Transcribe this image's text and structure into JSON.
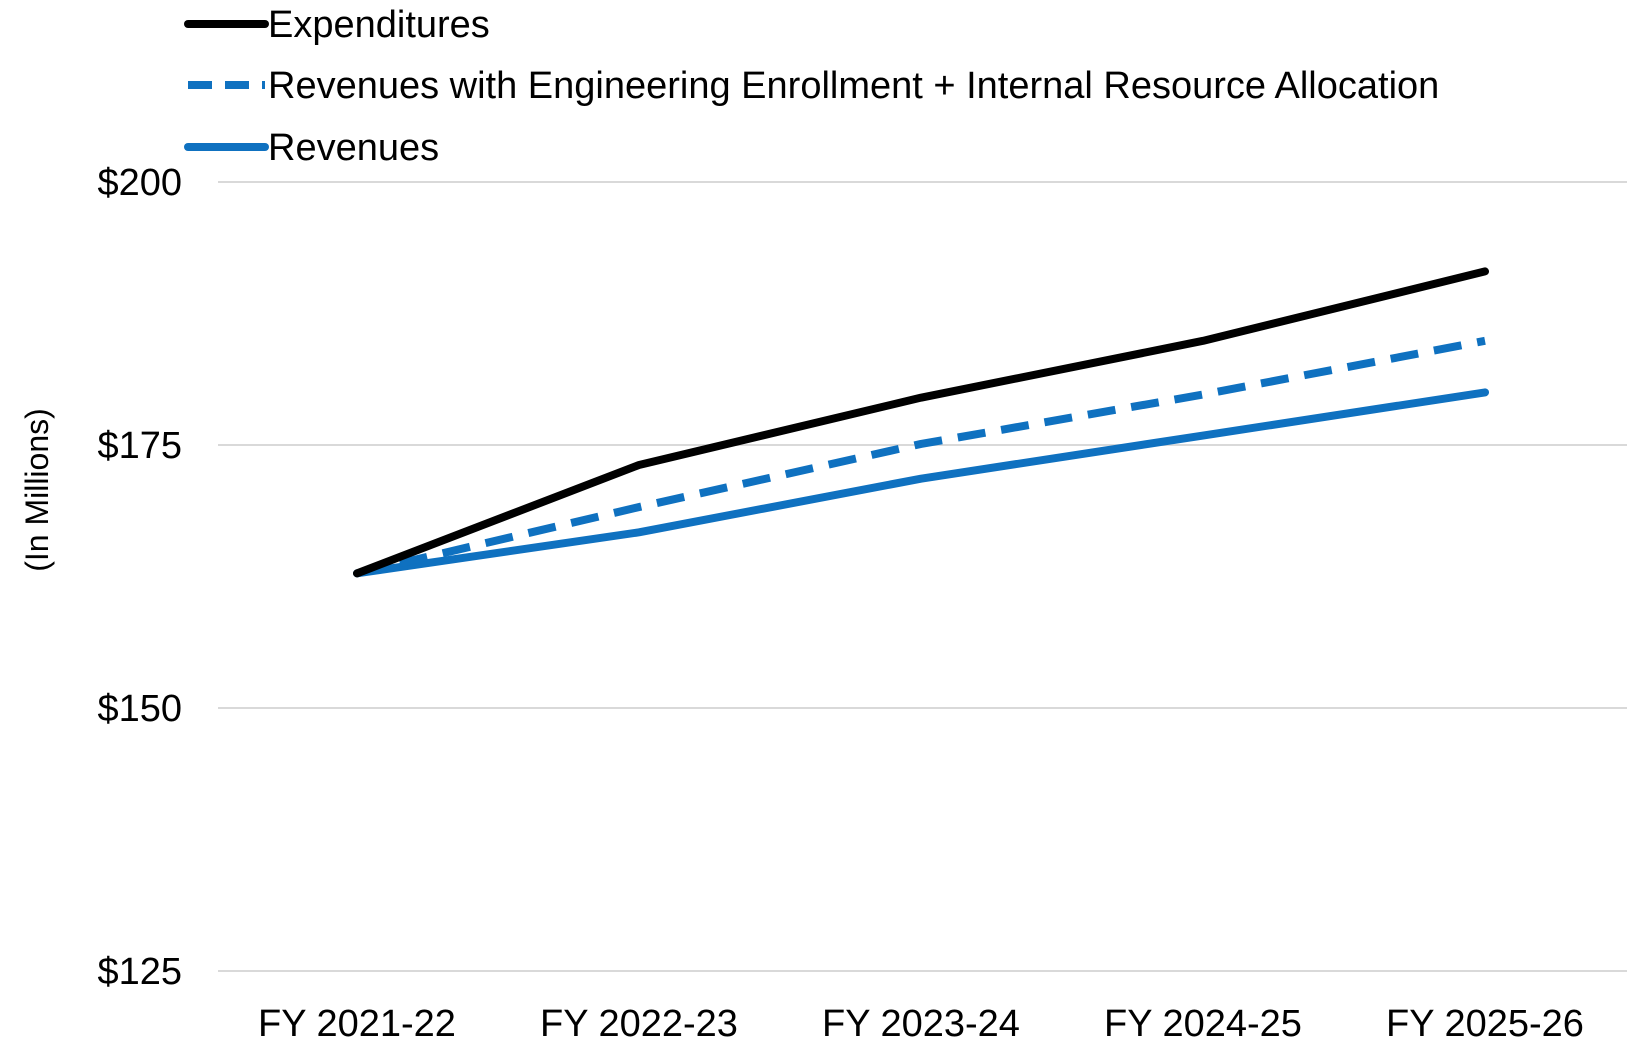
{
  "chart_data": {
    "type": "line",
    "categories": [
      "FY 2021-22",
      "FY 2022-23",
      "FY 2023-24",
      "FY 2024-25",
      "FY 2025-26"
    ],
    "series": [
      {
        "name": "Expenditures",
        "values": [
          162.8,
          173.1,
          179.5,
          184.9,
          191.5
        ],
        "color": "#000000",
        "dash": "solid"
      },
      {
        "name": "Revenues with Engineering Enrollment + Internal Resource Allocation",
        "values": [
          162.8,
          169.1,
          175.1,
          179.8,
          184.9
        ],
        "color": "#0f71c0",
        "dash": "dashed"
      },
      {
        "name": "Revenues",
        "values": [
          162.8,
          166.7,
          171.8,
          175.9,
          180.0
        ],
        "color": "#0f71c0",
        "dash": "solid"
      }
    ],
    "yticks": [
      "$200",
      "$175",
      "$150",
      "$125"
    ],
    "ytick_values": [
      200,
      175,
      150,
      125
    ],
    "ylim": [
      125,
      200
    ],
    "ylabel": "(In Millions)",
    "xlabel": "",
    "grid": true,
    "legend": "top-left"
  }
}
